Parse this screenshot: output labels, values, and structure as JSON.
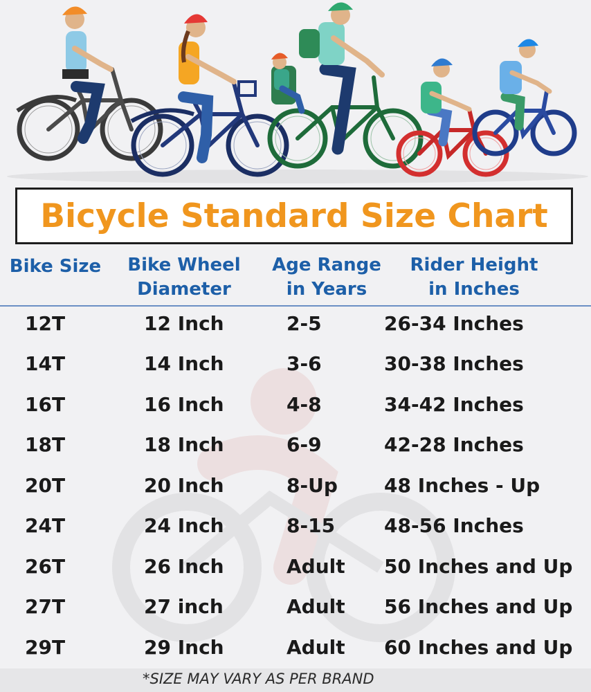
{
  "title": "Bicycle Standard Size Chart",
  "columns": [
    {
      "line1": "Bike Size",
      "line2": ""
    },
    {
      "line1": "Bike Wheel",
      "line2": "Diameter"
    },
    {
      "line1": "Age Range",
      "line2": "in Years"
    },
    {
      "line1": "Rider Height",
      "line2": "in Inches"
    }
  ],
  "rows": [
    {
      "size": "12T",
      "wheel": "12 Inch",
      "age": "2-5",
      "height": "26-34 Inches"
    },
    {
      "size": "14T",
      "wheel": "14 Inch",
      "age": "3-6",
      "height": "30-38 Inches"
    },
    {
      "size": "16T",
      "wheel": "16 Inch",
      "age": "4-8",
      "height": "34-42 Inches"
    },
    {
      "size": "18T",
      "wheel": "18 Inch",
      "age": "6-9",
      "height": "42-28 Inches"
    },
    {
      "size": "20T",
      "wheel": "20 Inch",
      "age": "8-Up",
      "height": "48 Inches - Up"
    },
    {
      "size": "24T",
      "wheel": "24 Inch",
      "age": "8-15",
      "height": "48-56 Inches"
    },
    {
      "size": "26T",
      "wheel": "26 Inch",
      "age": "Adult",
      "height": "50 Inches and Up"
    },
    {
      "size": "27T",
      "wheel": "27 inch",
      "age": "Adult",
      "height": "56 Inches and Up"
    },
    {
      "size": "29T",
      "wheel": "29 Inch",
      "age": "Adult",
      "height": "60 Inches and Up"
    }
  ],
  "footnote": "*SIZE MAY VARY AS PER BRAND",
  "colors": {
    "title": "#f0961e",
    "header": "#1d5fa8",
    "text": "#1a1a1a"
  },
  "icons": {
    "illustration": "family-cyclists-illustration",
    "watermark": "cyclist-watermark-icon"
  }
}
